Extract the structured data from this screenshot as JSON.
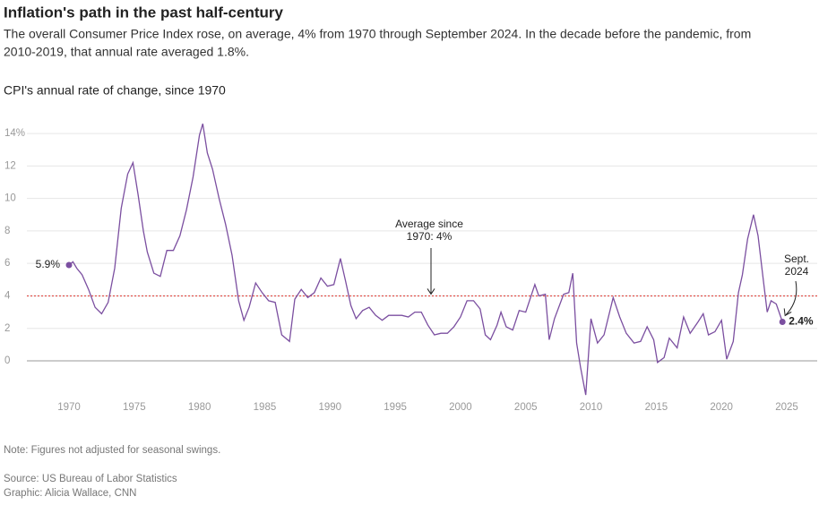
{
  "chart_data": {
    "type": "line",
    "title": "Inflation's path in the past half-century",
    "subtitle": [
      "The overall Consumer Price Index rose, on average, 4% from 1970 through September 2024. In the decade before the pandemic, from",
      "2010-2019, that annual rate averaged 1.8%."
    ],
    "chart_title": "CPI's annual rate of change, since 1970",
    "color": "#7b4fa0",
    "x": [
      1970.0,
      1970.3,
      1970.6,
      1971.0,
      1971.5,
      1972.0,
      1972.5,
      1973.0,
      1973.5,
      1974.0,
      1974.5,
      1974.9,
      1975.3,
      1975.7,
      1976.0,
      1976.5,
      1977.0,
      1977.5,
      1978.0,
      1978.5,
      1979.0,
      1979.5,
      1980.0,
      1980.25,
      1980.6,
      1981.0,
      1981.5,
      1982.0,
      1982.5,
      1983.0,
      1983.4,
      1983.8,
      1984.3,
      1984.8,
      1985.3,
      1985.8,
      1986.3,
      1986.9,
      1987.3,
      1987.8,
      1988.3,
      1988.8,
      1989.3,
      1989.8,
      1990.3,
      1990.8,
      1991.2,
      1991.6,
      1992.0,
      1992.5,
      1993.0,
      1993.5,
      1994.0,
      1994.5,
      1995.0,
      1995.5,
      1996.0,
      1996.5,
      1997.0,
      1997.5,
      1998.0,
      1998.5,
      1999.0,
      1999.5,
      2000.0,
      2000.5,
      2001.0,
      2001.5,
      2001.9,
      2002.3,
      2002.8,
      2003.1,
      2003.5,
      2004.0,
      2004.5,
      2005.0,
      2005.7,
      2006.0,
      2006.5,
      2006.8,
      2007.2,
      2007.9,
      2008.3,
      2008.6,
      2008.9,
      2009.2,
      2009.6,
      2010.0,
      2010.5,
      2011.0,
      2011.7,
      2012.2,
      2012.7,
      2013.3,
      2013.8,
      2014.3,
      2014.8,
      2015.1,
      2015.6,
      2016.0,
      2016.6,
      2017.1,
      2017.6,
      2018.2,
      2018.6,
      2019.0,
      2019.5,
      2020.0,
      2020.4,
      2020.9,
      2021.3,
      2021.6,
      2022.0,
      2022.45,
      2022.8,
      2023.2,
      2023.5,
      2023.8,
      2024.2,
      2024.67
    ],
    "values": [
      5.9,
      6.1,
      5.7,
      5.3,
      4.4,
      3.3,
      2.9,
      3.6,
      5.7,
      9.4,
      11.5,
      12.2,
      10.2,
      8.0,
      6.7,
      5.4,
      5.2,
      6.8,
      6.8,
      7.7,
      9.3,
      11.3,
      13.9,
      14.6,
      12.8,
      11.8,
      10.0,
      8.4,
      6.5,
      3.7,
      2.5,
      3.3,
      4.8,
      4.2,
      3.7,
      3.6,
      1.6,
      1.2,
      3.8,
      4.4,
      3.9,
      4.2,
      5.1,
      4.6,
      4.7,
      6.3,
      4.9,
      3.4,
      2.6,
      3.1,
      3.3,
      2.8,
      2.5,
      2.8,
      2.8,
      2.8,
      2.7,
      3.0,
      3.0,
      2.2,
      1.6,
      1.7,
      1.7,
      2.1,
      2.7,
      3.7,
      3.7,
      3.2,
      1.6,
      1.3,
      2.2,
      3.0,
      2.1,
      1.9,
      3.1,
      3.0,
      4.7,
      4.0,
      4.1,
      1.3,
      2.6,
      4.1,
      4.2,
      5.4,
      1.1,
      -0.4,
      -2.1,
      2.6,
      1.1,
      1.6,
      3.9,
      2.7,
      1.7,
      1.1,
      1.2,
      2.1,
      1.3,
      -0.1,
      0.2,
      1.4,
      0.8,
      2.7,
      1.7,
      2.4,
      2.9,
      1.6,
      1.8,
      2.5,
      0.1,
      1.2,
      4.2,
      5.3,
      7.5,
      9.0,
      7.7,
      5.0,
      3.0,
      3.7,
      3.5,
      2.4
    ],
    "value_labels": [
      "5.9%",
      null,
      null,
      null,
      null,
      null,
      null,
      null,
      null,
      null,
      null,
      null,
      null,
      null,
      null,
      null,
      null,
      null,
      null,
      null,
      null,
      null,
      null,
      null,
      null,
      null,
      null,
      null,
      null,
      null,
      null,
      null,
      null,
      null,
      null,
      null,
      null,
      null,
      null,
      null,
      null,
      null,
      null,
      null,
      null,
      null,
      null,
      null,
      null,
      null,
      null,
      null,
      null,
      null,
      null,
      null,
      null,
      null,
      null,
      null,
      null,
      null,
      null,
      null,
      null,
      null,
      null,
      null,
      null,
      null,
      null,
      null,
      null,
      null,
      null,
      null,
      null,
      null,
      null,
      null,
      null,
      null,
      null,
      null,
      null,
      null,
      null,
      null,
      null,
      null,
      null,
      null,
      null,
      null,
      null,
      null,
      null,
      null,
      null,
      null,
      null,
      null,
      null,
      null,
      null,
      null,
      null,
      null,
      null,
      null,
      null,
      null,
      null,
      null,
      null,
      null,
      null,
      null,
      null,
      "2.4%"
    ],
    "xlim": [
      1970,
      2025
    ],
    "xticks": [
      1970,
      1975,
      1980,
      1985,
      1990,
      1995,
      2000,
      2005,
      2010,
      2015,
      2020,
      2025
    ],
    "ylim": [
      -2,
      14.5
    ],
    "yticks": [
      0,
      2,
      4,
      6,
      8,
      10,
      12,
      {
        "value": 14,
        "label": "14%"
      }
    ],
    "grid": true,
    "average": {
      "value": 4,
      "label": [
        "Average since",
        "1970: 4%"
      ]
    },
    "end_annotation": [
      "Sept.",
      "2024"
    ],
    "notes": [
      "Note: Figures not adjusted for seasonal swings.",
      "Source: US Bureau of Labor Statistics",
      "Graphic: Alicia Wallace, CNN"
    ]
  }
}
